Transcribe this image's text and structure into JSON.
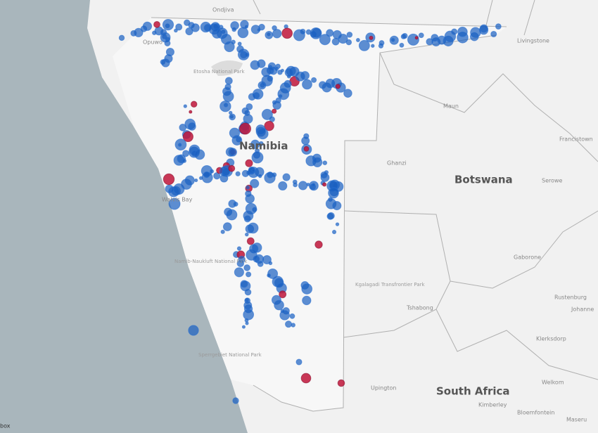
{
  "map": {
    "labels": [
      "Ondjiva",
      "Opuwo",
      "Etosha National Park",
      "Livingstone",
      "Maun",
      "Namibia",
      "Francistown",
      "Ghanzi",
      "Botswana",
      "Serowe",
      "Walvis Bay",
      "Namib-Naukluft National Park",
      "Gaborone",
      "Kgalagadi Transfrontier Park",
      "Tshabong",
      "Rustenburg",
      "Johanne",
      "Klerksdorp",
      "Sperrgebiet National Park",
      "Upington",
      "South Africa",
      "Welkom",
      "Kimberley",
      "Bloemfontein",
      "Maseru"
    ],
    "attribution": "box"
  }
}
